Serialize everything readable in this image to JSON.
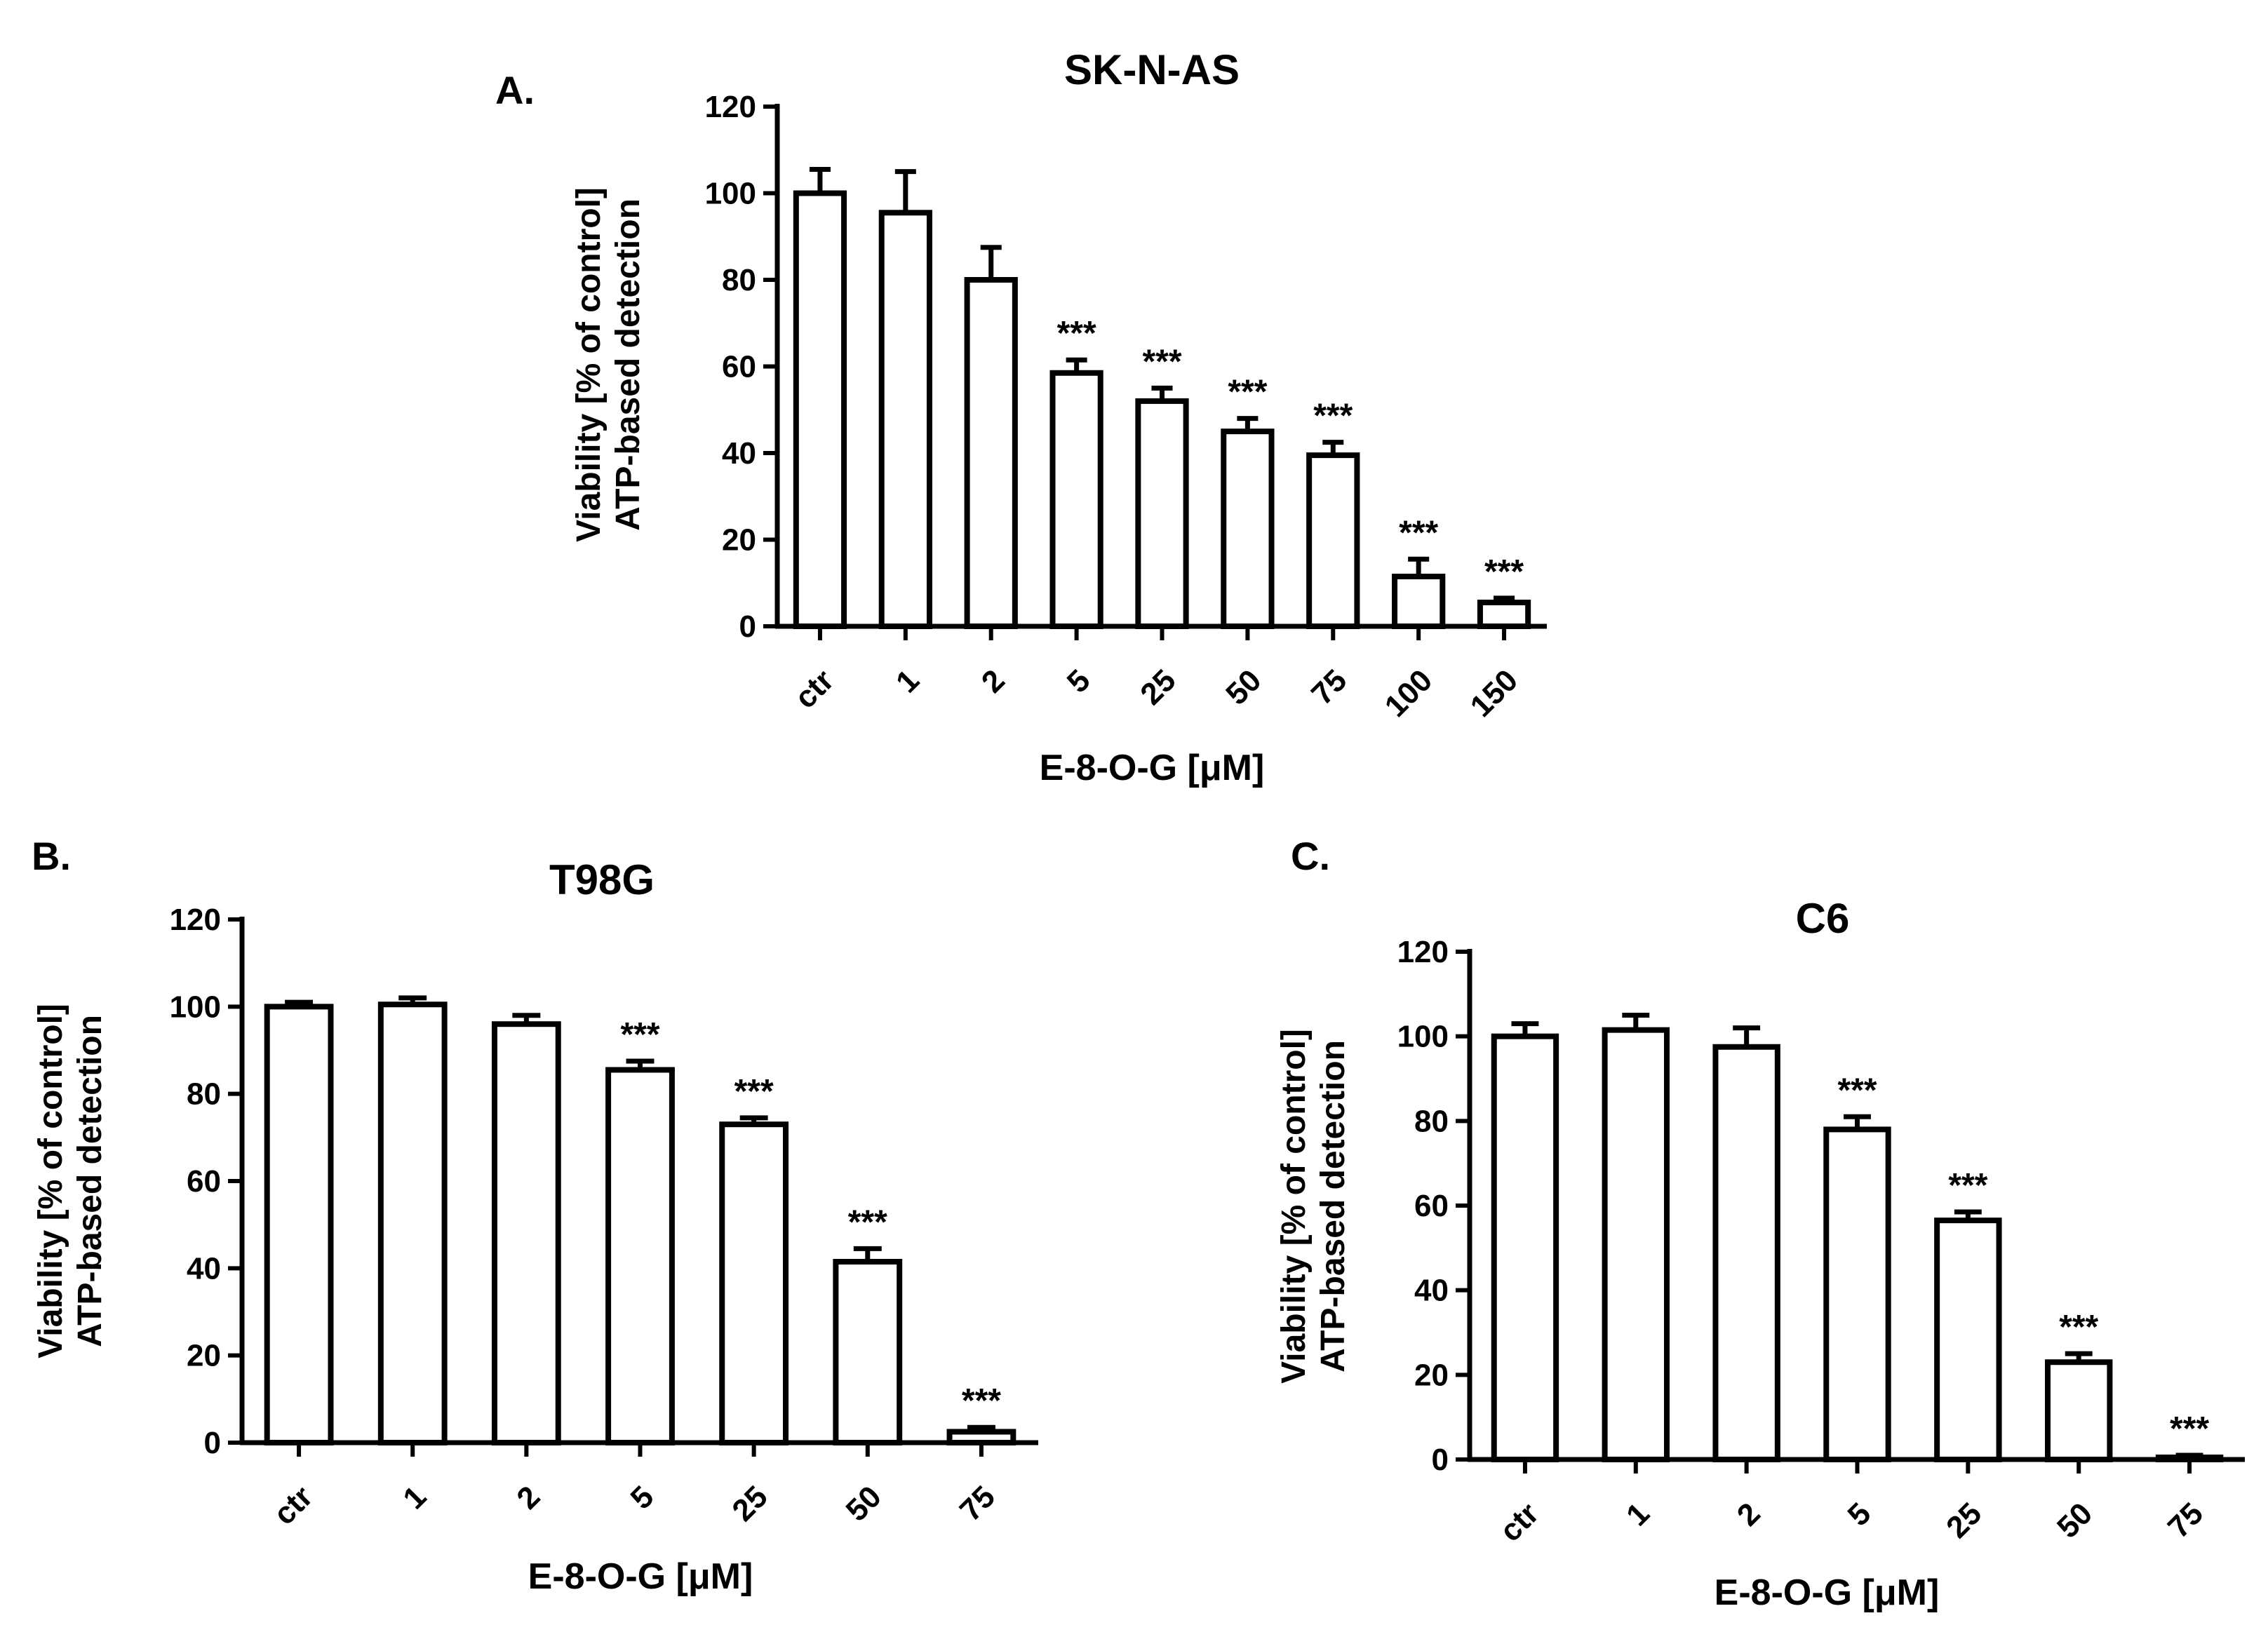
{
  "chart_data": [
    {
      "panel": "A.",
      "type": "bar",
      "title": "SK-N-AS",
      "xlabel": "E-8-O-G [μM]",
      "ylabel_line1": "Viability [% of control]",
      "ylabel_line2": "ATP-based detection",
      "ylim": [
        0,
        120
      ],
      "yticks": [
        "0",
        "20",
        "40",
        "60",
        "80",
        "100",
        "120"
      ],
      "categories": [
        "ctr",
        "1",
        "2",
        "5",
        "25",
        "50",
        "75",
        "100",
        "150"
      ],
      "values": [
        100,
        95.5,
        80,
        58.5,
        52,
        45,
        39.5,
        11.5,
        5.5
      ],
      "errors": [
        5.5,
        9.5,
        7.5,
        3,
        3,
        3,
        3,
        4,
        1
      ],
      "significance": [
        "",
        "",
        "",
        "***",
        "***",
        "***",
        "***",
        "***",
        "***"
      ]
    },
    {
      "panel": "B.",
      "type": "bar",
      "title": "T98G",
      "xlabel": "E-8-O-G [μM]",
      "ylabel_line1": "Viability [% of control]",
      "ylabel_line2": "ATP-based detection",
      "ylim": [
        0,
        120
      ],
      "yticks": [
        "0",
        "20",
        "40",
        "60",
        "80",
        "100",
        "120"
      ],
      "categories": [
        "ctr",
        "1",
        "2",
        "5",
        "25",
        "50",
        "75"
      ],
      "values": [
        100,
        100.5,
        96,
        85.5,
        73,
        41.5,
        2.5
      ],
      "errors": [
        1,
        1.5,
        2,
        2,
        1.5,
        3,
        1
      ],
      "significance": [
        "",
        "",
        "",
        "***",
        "***",
        "***",
        "***"
      ]
    },
    {
      "panel": "C.",
      "type": "bar",
      "title": "C6",
      "xlabel": "E-8-O-G [μM]",
      "ylabel_line1": "Viability [% of control]",
      "ylabel_line2": "ATP-based detection",
      "ylim": [
        0,
        120
      ],
      "yticks": [
        "0",
        "20",
        "40",
        "60",
        "80",
        "100",
        "120"
      ],
      "categories": [
        "ctr",
        "1",
        "2",
        "5",
        "25",
        "50",
        "75"
      ],
      "values": [
        100,
        101.5,
        97.5,
        78,
        56.5,
        23,
        0.5
      ],
      "errors": [
        3,
        3.5,
        4.5,
        3,
        2,
        2,
        0.5
      ],
      "significance": [
        "",
        "",
        "",
        "***",
        "***",
        "***",
        "***"
      ]
    }
  ]
}
